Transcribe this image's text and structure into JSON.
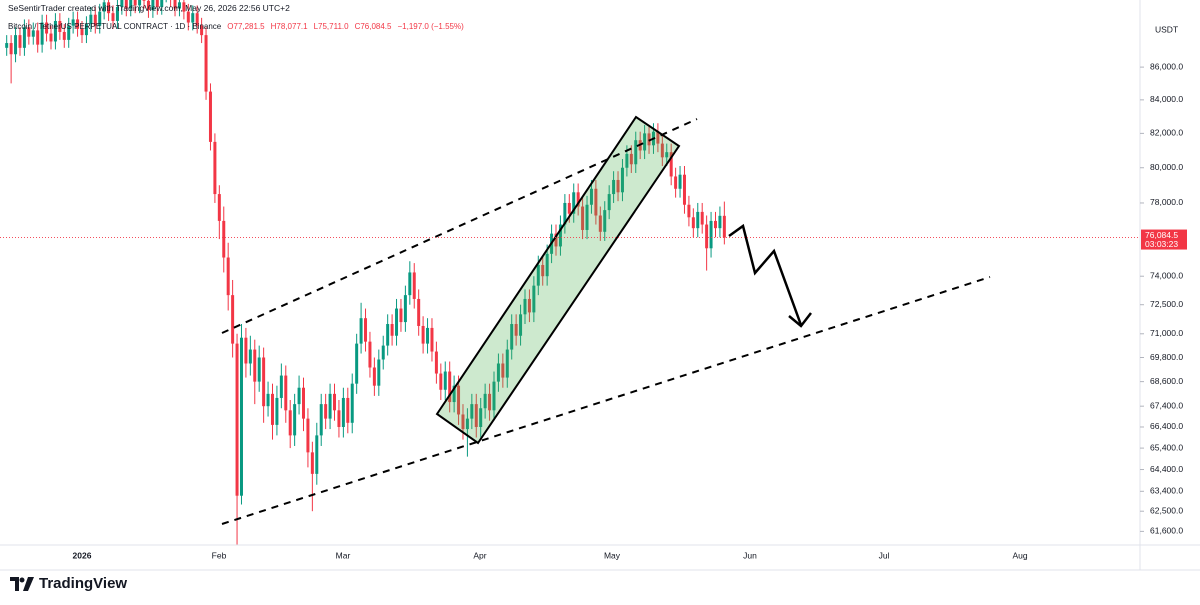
{
  "chart_data": {
    "type": "candlestick",
    "header": "SeSentirTrader created with TradingView.com, May 26, 2026 22:56 UTC+2",
    "symbol": "Bitcoin / TetherUS PERPETUAL CONTRACT · 1D · Binance",
    "legend_ohlc": [
      "O77,281.5",
      "H78,077.1",
      "L75,711.0",
      "C76,084.5",
      "−1,197.0 (−1.55%)"
    ],
    "currency": "USDT",
    "last_price_label": "76,084.5",
    "countdown": "03:03:23",
    "brand": "TradingView",
    "x_labels": [
      "2026",
      "Feb",
      "Mar",
      "Apr",
      "May",
      "Jun",
      "Jul",
      "Aug"
    ],
    "log_scale": true,
    "grid": false,
    "up_color": "#089981",
    "down_color": "#f23645",
    "ylim": [
      61000,
      90250
    ],
    "yticks": [
      {
        "value": 86000,
        "label": "86,000.0"
      },
      {
        "value": 84000,
        "label": "84,000.0"
      },
      {
        "value": 82000,
        "label": "82,000.0"
      },
      {
        "value": 80000,
        "label": "80,000.0"
      },
      {
        "value": 78000,
        "label": "78,000.0"
      },
      {
        "value": 74000,
        "label": "74,000.0"
      },
      {
        "value": 72500,
        "label": "72,500.0"
      },
      {
        "value": 71000,
        "label": "71,000.0"
      },
      {
        "value": 69800,
        "label": "69,800.0"
      },
      {
        "value": 68600,
        "label": "68,600.0"
      },
      {
        "value": 67400,
        "label": "67,400.0"
      },
      {
        "value": 66400,
        "label": "66,400.0"
      },
      {
        "value": 65400,
        "label": "65,400.0"
      },
      {
        "value": 64400,
        "label": "64,400.0"
      },
      {
        "value": 63400,
        "label": "63,400.0"
      },
      {
        "value": 62500,
        "label": "62,500.0"
      },
      {
        "value": 61600,
        "label": "61,600.0"
      }
    ],
    "open": [
      87200,
      87500,
      86800,
      88000,
      87200,
      88500,
      87900,
      88300,
      87400,
      88800,
      88100,
      87600,
      88900,
      88200,
      87700,
      88600,
      89000,
      88400,
      88000,
      88700,
      89300,
      88600,
      89500,
      90100,
      89400,
      88900,
      89800,
      90300,
      89700,
      90500,
      89900,
      90800,
      90200,
      89600,
      90400,
      89800,
      90600,
      91000,
      90300,
      89700,
      90100,
      89500,
      88800,
      89400,
      88600,
      88000,
      84500,
      81500,
      78500,
      77000,
      75000,
      73000,
      70500,
      63200,
      70800,
      69500,
      70200,
      68600,
      69800,
      67400,
      68000,
      66500,
      67800,
      68900,
      67200,
      66000,
      67500,
      68300,
      66800,
      65200,
      64200,
      66000,
      67500,
      66800,
      68000,
      67200,
      66400,
      67800,
      66600,
      68500,
      70500,
      71800,
      70600,
      69300,
      68400,
      69700,
      70400,
      71500,
      70900,
      72300,
      71600,
      73000,
      74200,
      72800,
      71400,
      70500,
      71300,
      70100,
      69000,
      68200,
      69100,
      67600,
      68400,
      67000,
      66300,
      66800,
      67500,
      66400,
      67300,
      68000,
      67200,
      68600,
      69500,
      68800,
      70200,
      71500,
      70900,
      72000,
      72800,
      72100,
      73500,
      74600,
      74000,
      75200,
      76300,
      75600,
      76800,
      78000,
      77400,
      78600,
      77800,
      76500,
      77900,
      78800,
      77300,
      76400,
      77600,
      78500,
      79300,
      78600,
      80000,
      80800,
      80200,
      81600,
      81000,
      82000,
      81300,
      82100,
      81400,
      80600,
      80900,
      79500,
      78800,
      79600,
      77900,
      77200,
      76600,
      77500,
      76800,
      75500,
      77000,
      76600,
      77281.5
    ],
    "high": [
      88000,
      88000,
      88500,
      88500,
      89000,
      89000,
      88800,
      88800,
      89300,
      89300,
      88600,
      89400,
      89400,
      88700,
      89100,
      89500,
      89500,
      88900,
      89200,
      89800,
      89800,
      90000,
      90600,
      90600,
      89900,
      90300,
      90800,
      90800,
      91000,
      91000,
      91300,
      91300,
      90700,
      90900,
      90900,
      91100,
      91500,
      91500,
      90800,
      90600,
      90600,
      90000,
      89900,
      89900,
      89100,
      88500,
      85000,
      82000,
      79000,
      77800,
      75800,
      73800,
      71000,
      71500,
      71300,
      70900,
      70700,
      70400,
      70300,
      68600,
      68500,
      68400,
      69500,
      69400,
      67700,
      68000,
      68900,
      68800,
      67300,
      65700,
      66600,
      68000,
      68000,
      68500,
      68500,
      67700,
      68300,
      68300,
      69000,
      71000,
      72600,
      72300,
      71100,
      69800,
      70200,
      70900,
      72000,
      72000,
      72800,
      72800,
      73500,
      74800,
      74700,
      73300,
      71900,
      71800,
      71800,
      70600,
      69500,
      69600,
      69600,
      68900,
      68900,
      67500,
      67300,
      68000,
      68000,
      67800,
      68500,
      68500,
      69100,
      70000,
      70000,
      70700,
      72000,
      72000,
      72500,
      73300,
      73300,
      74000,
      75100,
      75100,
      75700,
      76800,
      76800,
      77300,
      78500,
      78500,
      79100,
      79100,
      78300,
      78400,
      79300,
      79300,
      77800,
      78100,
      79000,
      79800,
      79800,
      80500,
      81300,
      81300,
      82100,
      82100,
      82500,
      82500,
      82600,
      82600,
      81900,
      81400,
      81400,
      80000,
      80100,
      80100,
      78400,
      77700,
      78000,
      78000,
      77300,
      77500,
      77500,
      77800,
      78077.1
    ],
    "low": [
      86700,
      85000,
      86300,
      86700,
      86700,
      87400,
      87400,
      86900,
      86900,
      87600,
      87100,
      87100,
      87700,
      87200,
      87200,
      88100,
      87900,
      87500,
      87500,
      88200,
      88100,
      88100,
      89000,
      88900,
      88400,
      88400,
      89300,
      89200,
      89200,
      89400,
      89400,
      89700,
      89100,
      89100,
      89300,
      89300,
      90100,
      89800,
      89200,
      89200,
      89000,
      88300,
      88300,
      88100,
      87500,
      84000,
      81000,
      78000,
      76000,
      74200,
      72200,
      69800,
      61000,
      62800,
      68800,
      68900,
      67500,
      68100,
      66600,
      66900,
      65800,
      66000,
      67300,
      66600,
      65400,
      65500,
      67000,
      66200,
      64500,
      62500,
      63700,
      65500,
      66300,
      66300,
      66700,
      65900,
      65900,
      66100,
      66100,
      68000,
      70000,
      70100,
      68800,
      67900,
      67900,
      69200,
      69900,
      70400,
      70400,
      71100,
      71100,
      72500,
      72300,
      70900,
      70000,
      70000,
      69600,
      68500,
      67700,
      67700,
      67100,
      67100,
      66500,
      65800,
      65000,
      66300,
      65900,
      65900,
      66800,
      66700,
      66700,
      68100,
      68300,
      68300,
      69700,
      70400,
      70400,
      71500,
      71600,
      71600,
      73000,
      73500,
      73500,
      74700,
      75100,
      75100,
      76300,
      76900,
      76900,
      77300,
      76000,
      76000,
      77400,
      76800,
      75900,
      75900,
      77100,
      78000,
      78100,
      78100,
      79500,
      79700,
      79700,
      80500,
      80500,
      80800,
      80800,
      80900,
      80100,
      80100,
      79000,
      78300,
      78300,
      77400,
      76700,
      76100,
      76100,
      76300,
      74300,
      75000,
      76100,
      76100,
      75711
    ],
    "close": [
      87500,
      86800,
      88000,
      87200,
      88500,
      87900,
      88300,
      87400,
      88800,
      88100,
      87600,
      88900,
      88200,
      87700,
      88600,
      89000,
      88400,
      88000,
      88700,
      89300,
      88600,
      89500,
      90100,
      89400,
      88900,
      89800,
      90300,
      89700,
      90500,
      89900,
      90800,
      90200,
      89600,
      90400,
      89800,
      90600,
      91000,
      90300,
      89700,
      90100,
      89500,
      88800,
      89400,
      88600,
      88000,
      84500,
      81500,
      78500,
      77000,
      75000,
      73000,
      70500,
      63200,
      70800,
      69500,
      70200,
      68600,
      69800,
      67400,
      68000,
      66500,
      67800,
      68900,
      67200,
      66000,
      67500,
      68300,
      66800,
      65200,
      64200,
      66000,
      67500,
      66800,
      68000,
      67200,
      66400,
      67800,
      66600,
      68500,
      70500,
      71800,
      70600,
      69300,
      68400,
      69700,
      70400,
      71500,
      70900,
      72300,
      71600,
      73000,
      74200,
      72800,
      71400,
      70500,
      71300,
      70100,
      69000,
      68200,
      69100,
      67600,
      68400,
      67000,
      66300,
      66800,
      67500,
      66400,
      67300,
      68000,
      67200,
      68600,
      69500,
      68800,
      70200,
      71500,
      70900,
      72000,
      72800,
      72100,
      73500,
      74600,
      74000,
      75200,
      76300,
      75600,
      76800,
      78000,
      77400,
      78600,
      77800,
      76500,
      77900,
      78800,
      77300,
      76400,
      77600,
      78500,
      79300,
      78600,
      80000,
      80800,
      80200,
      81600,
      81000,
      82000,
      81300,
      82100,
      81400,
      80600,
      80900,
      79500,
      78800,
      79600,
      77900,
      77200,
      76600,
      77500,
      76800,
      75500,
      77000,
      76600,
      77281.5,
      76084.5
    ]
  }
}
